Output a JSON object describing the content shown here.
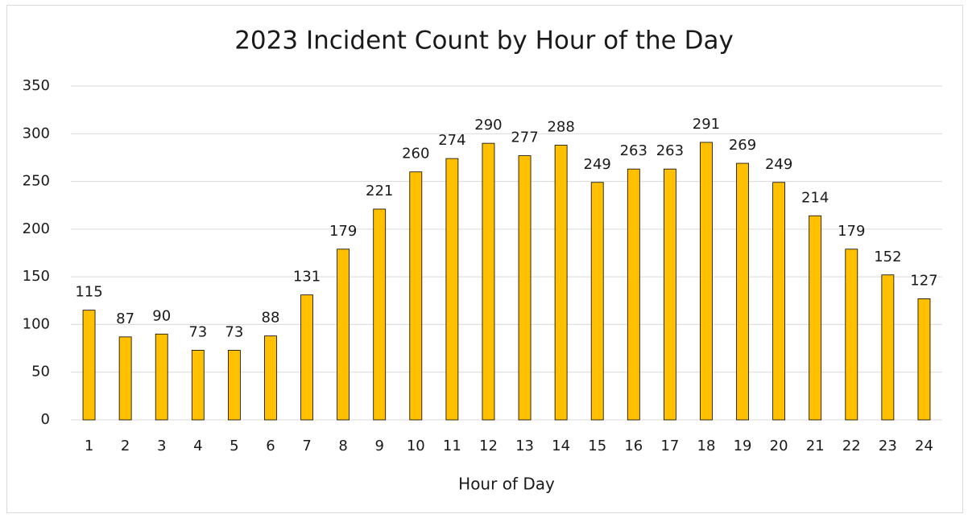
{
  "chart_data": {
    "type": "bar",
    "title": "2023 Incident Count by Hour of the Day",
    "x_label": "Hour of Day",
    "categories": [
      "1",
      "2",
      "3",
      "4",
      "5",
      "6",
      "7",
      "8",
      "9",
      "10",
      "11",
      "12",
      "13",
      "14",
      "15",
      "16",
      "17",
      "18",
      "19",
      "20",
      "21",
      "22",
      "23",
      "24"
    ],
    "values": [
      115,
      87,
      90,
      73,
      73,
      88,
      131,
      179,
      221,
      260,
      274,
      290,
      277,
      288,
      249,
      263,
      263,
      291,
      269,
      249,
      214,
      179,
      152,
      127
    ],
    "color": "#ffc000",
    "ylim": [
      0,
      350
    ],
    "yticks": [
      0,
      50,
      100,
      150,
      200,
      250,
      300,
      350
    ],
    "grid": true
  }
}
